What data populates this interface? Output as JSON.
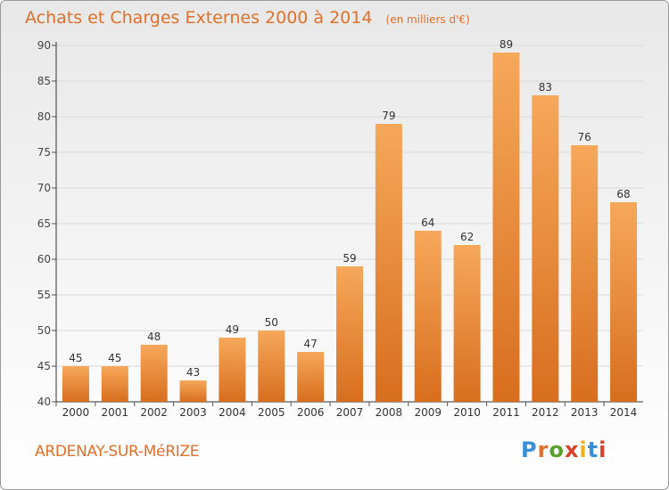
{
  "header": {
    "title": "Achats et Charges Externes 2000 à 2014",
    "unit": "(en milliers d'€)"
  },
  "footer": {
    "commune": "ARDENAY-SUR-MéRIZE",
    "brand": "Proxiti",
    "brand_colors": [
      "#3a8fd8",
      "#e0702a",
      "#5aa02c",
      "#d9402a",
      "#f0b020",
      "#3a8fd8",
      "#d9402a"
    ]
  },
  "colors": {
    "bar_top": "#f6a85a",
    "bar_bottom": "#d86e1e",
    "accent": "#e0702a",
    "grid": "#d8d8d8"
  },
  "chart_data": {
    "type": "bar",
    "title": "Achats et Charges Externes 2000 à 2014",
    "subtitle": "(en milliers d'€)",
    "categories": [
      "2000",
      "2001",
      "2002",
      "2003",
      "2004",
      "2005",
      "2006",
      "2007",
      "2008",
      "2009",
      "2010",
      "2011",
      "2012",
      "2013",
      "2014"
    ],
    "values": [
      45,
      45,
      48,
      43,
      49,
      50,
      47,
      59,
      79,
      64,
      62,
      89,
      83,
      76,
      68
    ],
    "ylim": [
      40,
      90
    ],
    "yticks": [
      40,
      45,
      50,
      55,
      60,
      65,
      70,
      75,
      80,
      85,
      90
    ],
    "grid": true,
    "xlabel": "",
    "ylabel": ""
  }
}
